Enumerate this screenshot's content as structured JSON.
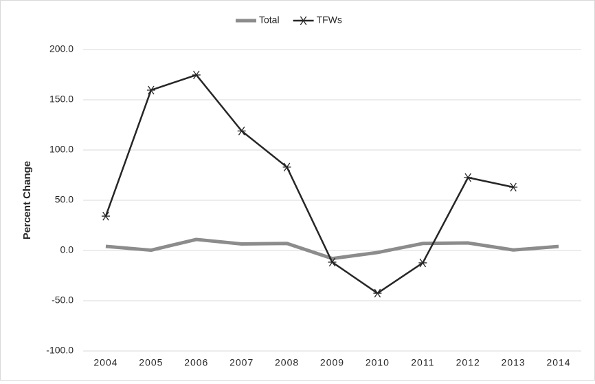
{
  "chart_data": {
    "type": "line",
    "y_label": "Percent Change",
    "categories": [
      "2004",
      "2005",
      "2006",
      "2007",
      "2008",
      "2009",
      "2010",
      "2011",
      "2012",
      "2013",
      "2014"
    ],
    "series": [
      {
        "name": "Total",
        "color": "#8c8c8c",
        "values": [
          4.1,
          0.3,
          11,
          6.5,
          7,
          -8,
          -2,
          7,
          7.5,
          0.5,
          4
        ]
      },
      {
        "name": "TFWs",
        "color": "#262626",
        "marker": "asterisk",
        "values": [
          34.2,
          159.6,
          174.7,
          119,
          83,
          -11.6,
          -42.5,
          -12.3,
          72.6,
          63,
          null
        ]
      }
    ],
    "ylim": [
      -100,
      200
    ],
    "yticks": [
      {
        "value": -100,
        "label": "-100.0"
      },
      {
        "value": -50,
        "label": "-50.0"
      },
      {
        "value": 0,
        "label": "0.0"
      },
      {
        "value": 50,
        "label": "50.0"
      },
      {
        "value": 100,
        "label": "100.0"
      },
      {
        "value": 150,
        "label": "150.0"
      },
      {
        "value": 200,
        "label": "200.0"
      }
    ],
    "grid": true,
    "legend": "top"
  }
}
